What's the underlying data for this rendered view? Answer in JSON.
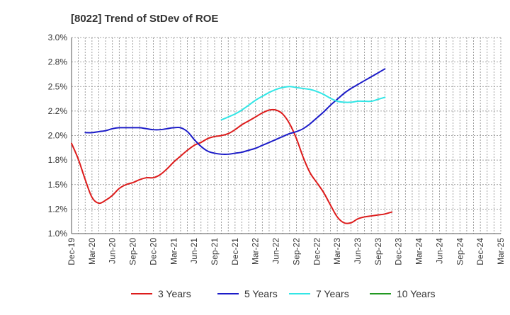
{
  "chart_data": {
    "type": "line",
    "title": "[8022]  Trend of StDev of ROE",
    "xlabel": "",
    "ylabel": "",
    "ylim": [
      1.0,
      3.0
    ],
    "yticks": [
      "1.0%",
      "1.2%",
      "1.5%",
      "1.8%",
      "2.0%",
      "2.2%",
      "2.5%",
      "2.8%",
      "3.0%"
    ],
    "ytick_values": [
      1.0,
      1.25,
      1.5,
      1.75,
      2.0,
      2.25,
      2.5,
      2.75,
      3.0
    ],
    "categories": [
      "Dec-19",
      "Mar-20",
      "Jun-20",
      "Sep-20",
      "Dec-20",
      "Mar-21",
      "Jun-21",
      "Sep-21",
      "Dec-21",
      "Mar-22",
      "Jun-22",
      "Sep-22",
      "Dec-22",
      "Mar-23",
      "Jun-23",
      "Sep-23",
      "Dec-23",
      "Mar-24",
      "Jun-24",
      "Sep-24",
      "Dec-24",
      "Mar-25"
    ],
    "grid": true,
    "legend_position": "bottom",
    "series": [
      {
        "name": "3 Years",
        "color": "#dd1c1c",
        "points": [
          [
            0,
            1.92
          ],
          [
            0.33,
            1.76
          ],
          [
            0.67,
            1.55
          ],
          [
            1,
            1.37
          ],
          [
            1.33,
            1.31
          ],
          [
            1.67,
            1.34
          ],
          [
            2,
            1.39
          ],
          [
            2.33,
            1.46
          ],
          [
            2.67,
            1.5
          ],
          [
            3,
            1.52
          ],
          [
            3.33,
            1.55
          ],
          [
            3.67,
            1.57
          ],
          [
            4,
            1.57
          ],
          [
            4.33,
            1.6
          ],
          [
            4.67,
            1.66
          ],
          [
            5,
            1.73
          ],
          [
            5.33,
            1.79
          ],
          [
            5.67,
            1.85
          ],
          [
            6,
            1.9
          ],
          [
            6.33,
            1.93
          ],
          [
            6.67,
            1.97
          ],
          [
            7,
            1.99
          ],
          [
            7.33,
            2.0
          ],
          [
            7.67,
            2.02
          ],
          [
            8,
            2.06
          ],
          [
            8.33,
            2.11
          ],
          [
            8.67,
            2.15
          ],
          [
            9,
            2.19
          ],
          [
            9.33,
            2.23
          ],
          [
            9.67,
            2.26
          ],
          [
            10,
            2.26
          ],
          [
            10.33,
            2.22
          ],
          [
            10.67,
            2.12
          ],
          [
            11,
            1.97
          ],
          [
            11.33,
            1.78
          ],
          [
            11.67,
            1.62
          ],
          [
            12,
            1.52
          ],
          [
            12.33,
            1.42
          ],
          [
            12.67,
            1.29
          ],
          [
            13,
            1.17
          ],
          [
            13.33,
            1.11
          ],
          [
            13.67,
            1.11
          ],
          [
            14,
            1.15
          ],
          [
            14.33,
            1.17
          ],
          [
            14.67,
            1.18
          ],
          [
            15,
            1.19
          ],
          [
            15.33,
            1.2
          ],
          [
            15.67,
            1.22
          ]
        ]
      },
      {
        "name": "5 Years",
        "color": "#1c1cc8",
        "points": [
          [
            0.67,
            2.03
          ],
          [
            1,
            2.03
          ],
          [
            1.33,
            2.04
          ],
          [
            1.67,
            2.05
          ],
          [
            2,
            2.07
          ],
          [
            2.33,
            2.08
          ],
          [
            2.67,
            2.08
          ],
          [
            3,
            2.08
          ],
          [
            3.33,
            2.08
          ],
          [
            3.67,
            2.07
          ],
          [
            4,
            2.06
          ],
          [
            4.33,
            2.06
          ],
          [
            4.67,
            2.07
          ],
          [
            5,
            2.08
          ],
          [
            5.33,
            2.08
          ],
          [
            5.67,
            2.04
          ],
          [
            6,
            1.96
          ],
          [
            6.33,
            1.89
          ],
          [
            6.67,
            1.84
          ],
          [
            7,
            1.82
          ],
          [
            7.33,
            1.81
          ],
          [
            7.67,
            1.81
          ],
          [
            8,
            1.82
          ],
          [
            8.33,
            1.83
          ],
          [
            8.67,
            1.85
          ],
          [
            9,
            1.87
          ],
          [
            9.33,
            1.9
          ],
          [
            9.67,
            1.93
          ],
          [
            10,
            1.96
          ],
          [
            10.33,
            1.99
          ],
          [
            10.67,
            2.02
          ],
          [
            11,
            2.04
          ],
          [
            11.33,
            2.07
          ],
          [
            11.67,
            2.12
          ],
          [
            12,
            2.18
          ],
          [
            12.33,
            2.24
          ],
          [
            12.67,
            2.31
          ],
          [
            13,
            2.37
          ],
          [
            13.33,
            2.43
          ],
          [
            13.67,
            2.48
          ],
          [
            14,
            2.52
          ],
          [
            14.33,
            2.56
          ],
          [
            14.67,
            2.6
          ],
          [
            15,
            2.64
          ],
          [
            15.33,
            2.68
          ]
        ]
      },
      {
        "name": "7 Years",
        "color": "#33e6e6",
        "points": [
          [
            7.33,
            2.16
          ],
          [
            7.67,
            2.19
          ],
          [
            8,
            2.22
          ],
          [
            8.33,
            2.26
          ],
          [
            8.67,
            2.31
          ],
          [
            9,
            2.36
          ],
          [
            9.33,
            2.4
          ],
          [
            9.67,
            2.44
          ],
          [
            10,
            2.47
          ],
          [
            10.33,
            2.49
          ],
          [
            10.67,
            2.5
          ],
          [
            11,
            2.49
          ],
          [
            11.33,
            2.48
          ],
          [
            11.67,
            2.47
          ],
          [
            12,
            2.45
          ],
          [
            12.33,
            2.42
          ],
          [
            12.67,
            2.38
          ],
          [
            13,
            2.35
          ],
          [
            13.33,
            2.34
          ],
          [
            13.67,
            2.34
          ],
          [
            14,
            2.35
          ],
          [
            14.33,
            2.35
          ],
          [
            14.67,
            2.35
          ],
          [
            15,
            2.37
          ],
          [
            15.33,
            2.39
          ]
        ]
      },
      {
        "name": "10 Years",
        "color": "#229922",
        "points": []
      }
    ]
  }
}
